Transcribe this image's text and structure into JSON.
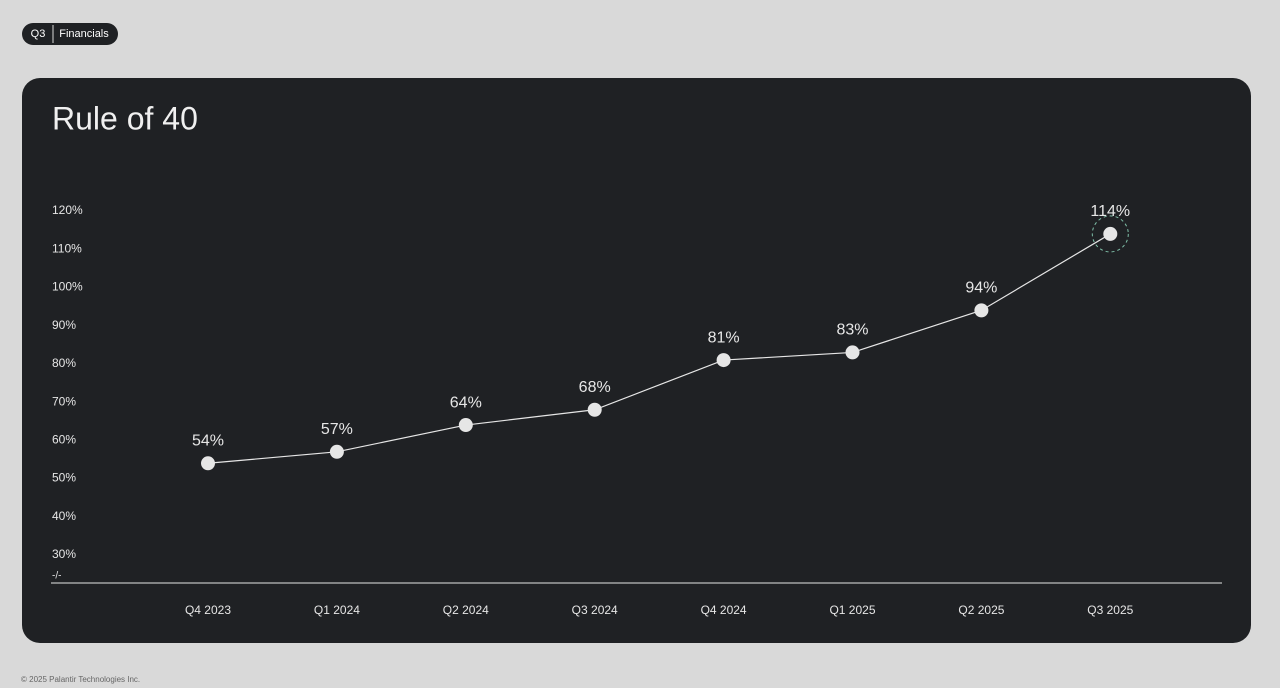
{
  "header": {
    "badge": "Q3",
    "section": "Financials"
  },
  "chart_data": {
    "type": "line",
    "title": "Rule of 40",
    "categories": [
      "Q4 2023",
      "Q1 2024",
      "Q2 2024",
      "Q3 2024",
      "Q4 2024",
      "Q1 2025",
      "Q2 2025",
      "Q3 2025"
    ],
    "values": [
      54,
      57,
      64,
      68,
      81,
      83,
      94,
      114
    ],
    "value_labels": [
      "54%",
      "57%",
      "64%",
      "68%",
      "81%",
      "83%",
      "94%",
      "114%"
    ],
    "color": "#e6e6e6",
    "ylim": [
      30,
      120
    ],
    "yticks": [
      {
        "value": 30,
        "label": "30%"
      },
      {
        "value": 40,
        "label": "40%"
      },
      {
        "value": 50,
        "label": "50%"
      },
      {
        "value": 60,
        "label": "60%"
      },
      {
        "value": 70,
        "label": "70%"
      },
      {
        "value": 80,
        "label": "80%"
      },
      {
        "value": 90,
        "label": "90%"
      },
      {
        "value": 100,
        "label": "100%"
      },
      {
        "value": 110,
        "label": "110%"
      },
      {
        "value": 120,
        "label": "120%"
      }
    ],
    "axis_break": "-/-"
  },
  "footer": "© 2025 Palantir Technologies Inc."
}
